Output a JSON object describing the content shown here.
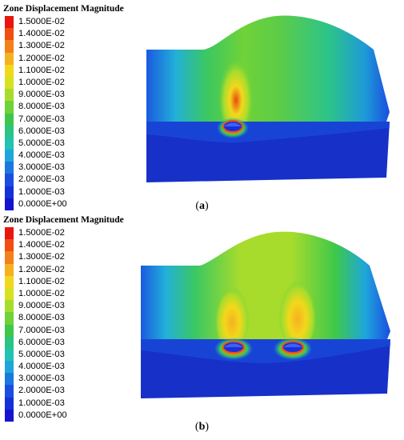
{
  "figure": {
    "panels": [
      {
        "id": "a",
        "legend_title": "Zone Displacement Magnitude",
        "caption_open": "(",
        "caption_letter": "a",
        "caption_close": ")",
        "tunnels": 1
      },
      {
        "id": "b",
        "legend_title": "Zone Displacement Magnitude",
        "caption_open": "(",
        "caption_letter": "b",
        "caption_close": ")",
        "tunnels": 2
      }
    ],
    "legend": [
      {
        "label": "1.5000E-02",
        "color": "#e8160e"
      },
      {
        "label": "1.4000E-02",
        "color": "#f04e12"
      },
      {
        "label": "1.3000E-02",
        "color": "#f4801a"
      },
      {
        "label": "1.2000E-02",
        "color": "#f6b11f"
      },
      {
        "label": "1.1000E-02",
        "color": "#f2d81c"
      },
      {
        "label": "1.0000E-02",
        "color": "#d6e21e"
      },
      {
        "label": "9.0000E-03",
        "color": "#a8dc2c"
      },
      {
        "label": "8.0000E-03",
        "color": "#6fd238"
      },
      {
        "label": "7.0000E-03",
        "color": "#3ec84a"
      },
      {
        "label": "6.0000E-03",
        "color": "#2cc482"
      },
      {
        "label": "5.0000E-03",
        "color": "#22c2b4"
      },
      {
        "label": "4.0000E-03",
        "color": "#1ea6dc"
      },
      {
        "label": "3.0000E-03",
        "color": "#1a78e0"
      },
      {
        "label": "2.0000E-03",
        "color": "#1a4ee0"
      },
      {
        "label": "1.0000E-03",
        "color": "#1430d8"
      },
      {
        "label": "0.0000E+00",
        "color": "#1414d0"
      }
    ]
  }
}
